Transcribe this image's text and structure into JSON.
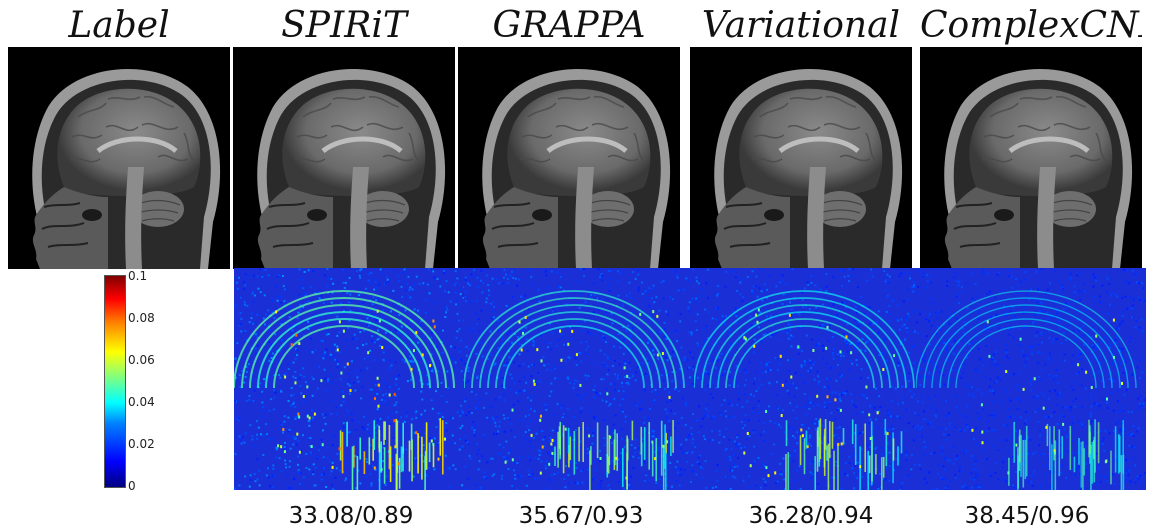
{
  "columns": [
    {
      "title": "Label"
    },
    {
      "title": "SPIRiT"
    },
    {
      "title": "GRAPPA"
    },
    {
      "title": "Variational"
    },
    {
      "title": "ComplexCNN"
    }
  ],
  "colorbar": {
    "ticks": [
      "0.1",
      "0.08",
      "0.06",
      "0.04",
      "0.02",
      "0"
    ],
    "colormap": "jet",
    "range": [
      0,
      0.1
    ]
  },
  "metrics": [
    {
      "method": "SPIRiT",
      "value": "33.08/0.89"
    },
    {
      "method": "GRAPPA",
      "value": "35.67/0.93"
    },
    {
      "method": "Variational",
      "value": "36.28/0.94"
    },
    {
      "method": "ComplexCNN",
      "value": "38.45/0.96"
    }
  ],
  "error_intensity": [
    1.0,
    0.75,
    0.7,
    0.45
  ],
  "colors": {
    "background": "#000000",
    "error_base": "#1a2fd6"
  }
}
